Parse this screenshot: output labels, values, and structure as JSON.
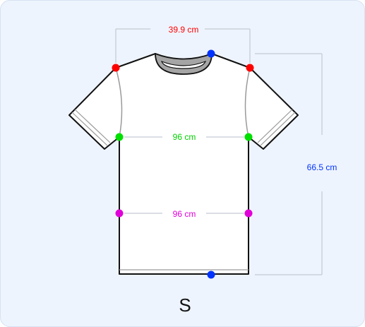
{
  "size": "S",
  "measurements": {
    "shoulder_width": "39.9 cm",
    "chest": "96 cm",
    "waist": "96 cm",
    "length": "66.5 cm"
  },
  "colors": {
    "shoulder": "#ff0000",
    "chest": "#00e000",
    "waist": "#e000d8",
    "length": "#0033ff",
    "guide_line": "#c3c9d3",
    "background": "#eef4fd"
  }
}
